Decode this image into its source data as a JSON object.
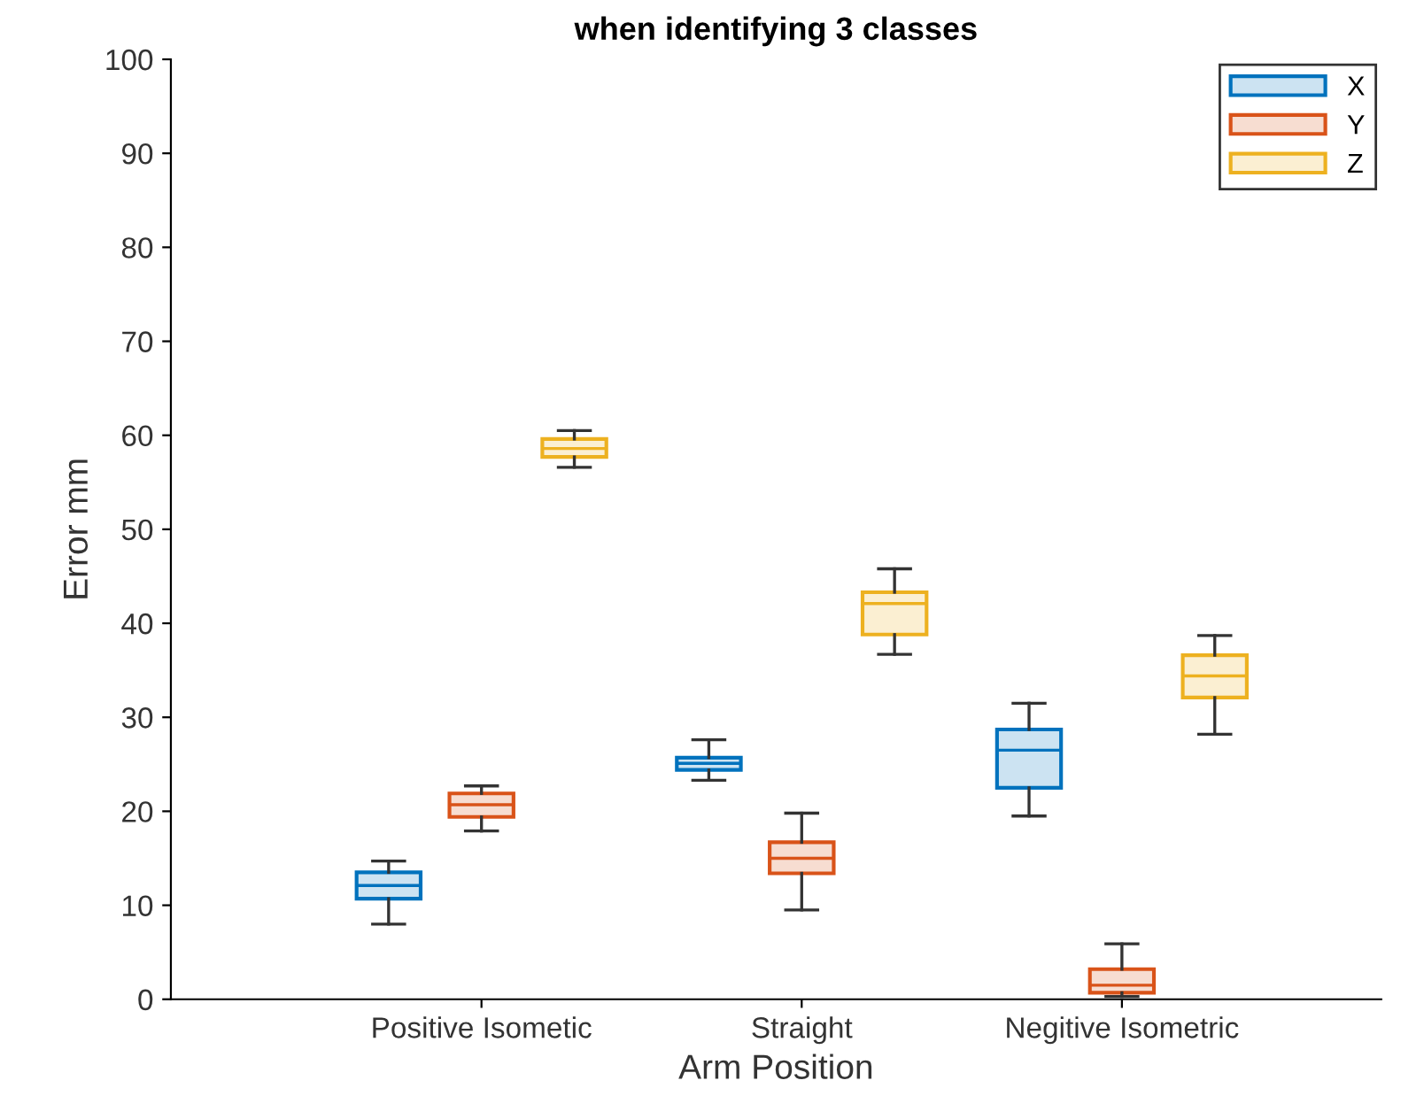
{
  "chart_data": {
    "type": "box",
    "title": "when identifying 3 classes",
    "xlabel": "Arm Position",
    "ylabel": "Error mm",
    "categories": [
      "Positive Isometic",
      "Straight",
      "Negitive Isometric"
    ],
    "ylim": [
      0,
      100
    ],
    "yticks": [
      0,
      10,
      20,
      30,
      40,
      50,
      60,
      70,
      80,
      90,
      100
    ],
    "grid": false,
    "legend": "top right",
    "series": [
      {
        "name": "X",
        "color": "#0072bd",
        "boxes": [
          {
            "low": 8.0,
            "q1": 10.7,
            "median": 12.1,
            "q3": 13.5,
            "high": 14.7
          },
          {
            "low": 23.3,
            "q1": 24.4,
            "median": 25.1,
            "q3": 25.7,
            "high": 27.6
          },
          {
            "low": 19.5,
            "q1": 22.5,
            "median": 26.5,
            "q3": 28.7,
            "high": 31.5
          }
        ]
      },
      {
        "name": "Y",
        "color": "#d95319",
        "boxes": [
          {
            "low": 17.9,
            "q1": 19.4,
            "median": 20.7,
            "q3": 21.9,
            "high": 22.7
          },
          {
            "low": 9.5,
            "q1": 13.4,
            "median": 15.0,
            "q3": 16.7,
            "high": 19.8
          },
          {
            "low": 0.3,
            "q1": 0.7,
            "median": 1.5,
            "q3": 3.2,
            "high": 5.9
          }
        ]
      },
      {
        "name": "Z",
        "color": "#edb120",
        "boxes": [
          {
            "low": 56.6,
            "q1": 57.7,
            "median": 58.6,
            "q3": 59.6,
            "high": 60.5
          },
          {
            "low": 36.7,
            "q1": 38.8,
            "median": 42.1,
            "q3": 43.3,
            "high": 45.8
          },
          {
            "low": 28.2,
            "q1": 32.1,
            "median": 34.4,
            "q3": 36.6,
            "high": 38.7
          }
        ]
      }
    ]
  }
}
